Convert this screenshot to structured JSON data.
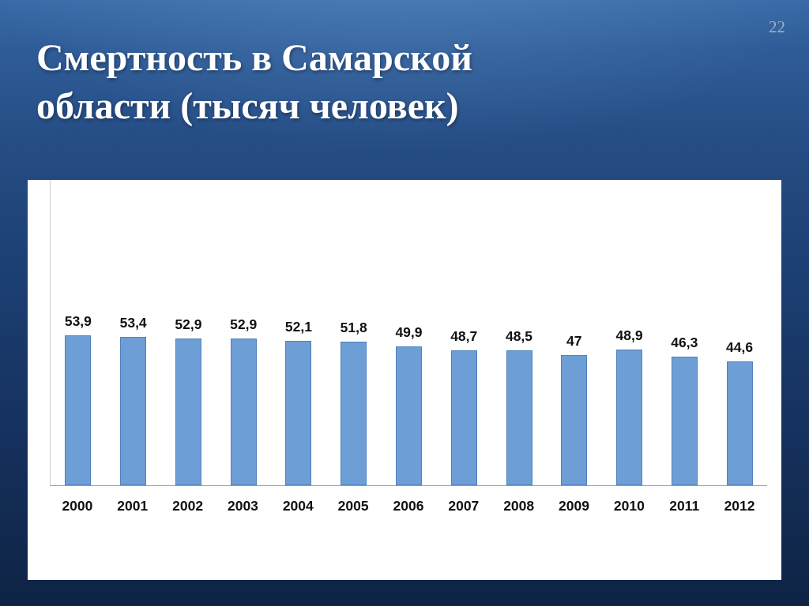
{
  "slide": {
    "page_number": "22",
    "title": "Смертность в Самарской области (тысяч человек)",
    "title_lines": [
      "Смертность в Самарской",
      "области (тысяч человек)"
    ]
  },
  "chart_data": {
    "type": "bar",
    "title": "Смертность в Самарской области (тысяч человек)",
    "categories": [
      "2000",
      "2001",
      "2002",
      "2003",
      "2004",
      "2005",
      "2006",
      "2007",
      "2008",
      "2009",
      "2010",
      "2011",
      "2012"
    ],
    "values": [
      53.9,
      53.4,
      52.9,
      52.9,
      52.1,
      51.8,
      49.9,
      48.7,
      48.5,
      47,
      48.9,
      46.3,
      44.6
    ],
    "value_labels": [
      "53,9",
      "53,4",
      "52,9",
      "52,9",
      "52,1",
      "51,8",
      "49,9",
      "48,7",
      "48,5",
      "47",
      "48,9",
      "46,3",
      "44,6"
    ],
    "xlabel": "",
    "ylabel": "",
    "ylim": [
      0,
      110
    ],
    "grid": false,
    "legend": false,
    "bar_color": "#6D9ED6",
    "bar_border_color": "#4F81BD",
    "axis_color": "#9aa0a6",
    "panel_color": "#ffffff"
  }
}
